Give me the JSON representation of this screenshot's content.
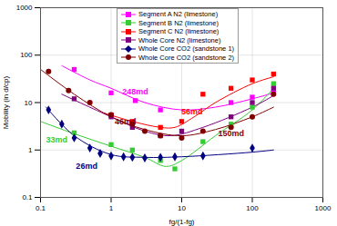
{
  "chart_data": {
    "type": "scatter",
    "log": true,
    "grid": true,
    "legend": "top",
    "x_label": "fg/(1-fg)",
    "y_label": "Mobility (in d/cp)",
    "xlim": [
      0.1,
      1000
    ],
    "ylim": [
      0.1,
      1000
    ],
    "xticks": [
      0.1,
      1,
      10,
      100,
      1000
    ],
    "yticks": [
      0.1,
      1,
      10,
      100,
      1000
    ],
    "series": [
      {
        "name": "Segment A N2 (limestone)",
        "color": "#ff00ff",
        "marker": "square",
        "x": [
          0.3,
          1,
          2.2,
          5,
          50,
          100,
          200
        ],
        "values": [
          50,
          16,
          11,
          7,
          10,
          13,
          16
        ],
        "trend": {
          "x": [
            0.2,
            0.5,
            1,
            3,
            10,
            30,
            100,
            200
          ],
          "values": [
            60,
            30,
            20,
            10,
            7,
            8,
            12,
            16
          ]
        }
      },
      {
        "name": "Segment B N2 (limestone)",
        "color": "#33cc33",
        "marker": "square",
        "x": [
          0.3,
          1,
          2,
          5,
          8,
          20,
          50,
          100,
          200
        ],
        "values": [
          2.3,
          1.3,
          1,
          0.6,
          0.4,
          1.5,
          3.5,
          8,
          25
        ],
        "trend": {
          "x": [
            0.1,
            0.3,
            1,
            3,
            6,
            10,
            30,
            100,
            200
          ],
          "values": [
            4,
            2.2,
            1.2,
            0.7,
            0.45,
            0.6,
            2,
            7,
            20
          ]
        }
      },
      {
        "name": "Segment C N2 (limestone)",
        "color": "#ff0000",
        "marker": "square",
        "x": [
          1,
          2,
          5,
          10,
          20,
          50,
          100,
          200
        ],
        "values": [
          5.5,
          4,
          3,
          4,
          15,
          20,
          30,
          40
        ],
        "trend": {
          "x": [
            0.8,
            2,
            5,
            8,
            15,
            30,
            100,
            200
          ],
          "values": [
            6,
            4,
            3,
            3,
            5,
            10,
            25,
            35
          ]
        }
      },
      {
        "name": "Whole Core N2 (limestone)",
        "color": "#800080",
        "marker": "square",
        "x": [
          0.3,
          1,
          2,
          5,
          10,
          50,
          100,
          200
        ],
        "values": [
          12,
          5,
          3,
          2,
          2.5,
          5,
          10,
          20
        ],
        "trend": {
          "x": [
            0.2,
            1,
            3,
            7,
            20,
            100,
            200
          ],
          "values": [
            15,
            5,
            2.5,
            2,
            3,
            8,
            14
          ]
        }
      },
      {
        "name": "Whole Core CO2 (sandstone 1)",
        "color": "#000080",
        "marker": "diamond",
        "x": [
          0.13,
          0.2,
          0.3,
          0.5,
          0.7,
          1,
          1.5,
          2,
          3,
          5,
          8,
          20,
          100
        ],
        "values": [
          7,
          3.5,
          1.8,
          1.1,
          0.85,
          0.75,
          0.72,
          0.7,
          0.68,
          0.7,
          0.72,
          0.75,
          1.1
        ],
        "trend": {
          "x": [
            0.12,
            0.3,
            1,
            3,
            10,
            100,
            200
          ],
          "values": [
            8,
            2,
            0.8,
            0.7,
            0.72,
            0.9,
            1
          ]
        }
      },
      {
        "name": "Whole Core CO2 (sandstone 2)",
        "color": "#800000",
        "marker": "circle",
        "x": [
          0.13,
          0.25,
          0.5,
          1,
          2,
          3,
          5,
          10,
          20,
          50,
          100,
          200
        ],
        "values": [
          45,
          18,
          10,
          5.5,
          3.5,
          2.5,
          2,
          1.8,
          2.5,
          3,
          5,
          15
        ],
        "trend": {
          "x": [
            0.1,
            0.3,
            1,
            3,
            10,
            30,
            100,
            200
          ],
          "values": [
            50,
            15,
            5,
            2.7,
            2,
            2.7,
            5,
            8
          ]
        }
      }
    ],
    "annotations": [
      {
        "text": "248md",
        "x": 2.2,
        "y": 17,
        "color": "#ff00ff"
      },
      {
        "text": "56md",
        "x": 14,
        "y": 6.5,
        "color": "#ff0000"
      },
      {
        "text": "46md",
        "x": 1.6,
        "y": 4,
        "color": "#800000"
      },
      {
        "text": "150md",
        "x": 50,
        "y": 2.2,
        "color": "#800000"
      },
      {
        "text": "33md",
        "x": 0.17,
        "y": 1.6,
        "color": "#33cc33"
      },
      {
        "text": "26md",
        "x": 0.45,
        "y": 0.45,
        "color": "#000080"
      }
    ]
  }
}
